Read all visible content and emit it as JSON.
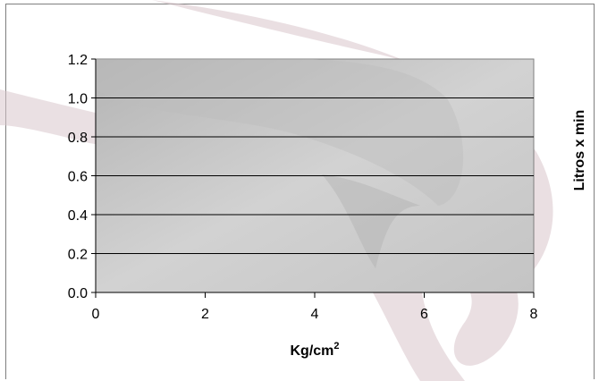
{
  "chart_data": {
    "type": "line",
    "title": "",
    "xlabel": "Kg/cm",
    "xlabel_superscript": "2",
    "ylabel": "Litros x min",
    "x_ticks": [
      "0",
      "2",
      "4",
      "6",
      "8"
    ],
    "y_ticks": [
      "0.0",
      "0.2",
      "0.4",
      "0.6",
      "0.8",
      "1.0",
      "1.2"
    ],
    "xlim": [
      0,
      8
    ],
    "ylim": [
      0,
      1.2
    ],
    "grid": "horizontal",
    "series": [],
    "plot_background": "#c8c8c8",
    "gridline_color": "#000000",
    "watermark_color": "#d9c6cc"
  }
}
